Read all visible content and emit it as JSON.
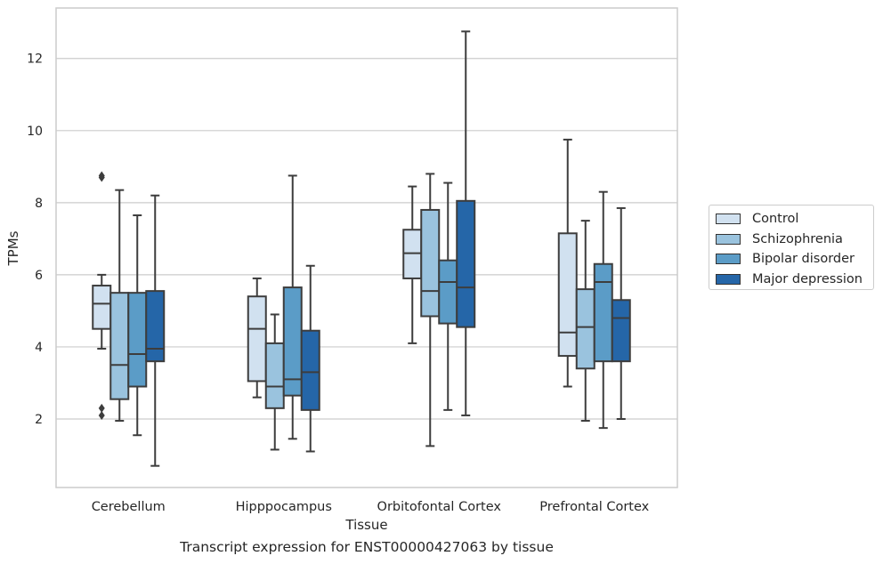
{
  "chart_data": {
    "type": "box",
    "xlabel": "Tissue",
    "ylabel": "TPMs",
    "caption": "Transcript expression for ENST00000427063 by tissue",
    "categories": [
      "Cerebellum",
      "Hipppocampus",
      "Orbitofontal Cortex",
      "Prefrontal Cortex"
    ],
    "ylim": [
      0.1,
      13.4
    ],
    "yticks": [
      2,
      4,
      6,
      8,
      10,
      12
    ],
    "grid": "horizontal",
    "legend_position": "right",
    "series": [
      {
        "name": "Control",
        "color": "#d1e1f0",
        "boxes": [
          {
            "whislo": 3.95,
            "q1": 4.5,
            "med": 5.2,
            "q3": 5.7,
            "whishi": 6.0,
            "fliers": [
              8.7,
              8.75,
              2.3,
              2.1
            ]
          },
          {
            "whislo": 2.6,
            "q1": 3.05,
            "med": 4.5,
            "q3": 5.4,
            "whishi": 5.9,
            "fliers": []
          },
          {
            "whislo": 4.1,
            "q1": 5.9,
            "med": 6.6,
            "q3": 7.25,
            "whishi": 8.45,
            "fliers": []
          },
          {
            "whislo": 2.9,
            "q1": 3.75,
            "med": 4.4,
            "q3": 7.15,
            "whishi": 9.75,
            "fliers": []
          }
        ]
      },
      {
        "name": "Schizophrenia",
        "color": "#9ac3de",
        "boxes": [
          {
            "whislo": 1.95,
            "q1": 2.55,
            "med": 3.5,
            "q3": 5.5,
            "whishi": 8.35,
            "fliers": []
          },
          {
            "whislo": 1.15,
            "q1": 2.3,
            "med": 2.9,
            "q3": 4.1,
            "whishi": 4.9,
            "fliers": []
          },
          {
            "whislo": 1.25,
            "q1": 4.85,
            "med": 5.55,
            "q3": 7.8,
            "whishi": 8.8,
            "fliers": []
          },
          {
            "whislo": 1.95,
            "q1": 3.4,
            "med": 4.55,
            "q3": 5.6,
            "whishi": 7.5,
            "fliers": []
          }
        ]
      },
      {
        "name": "Bipolar disorder",
        "color": "#5b9cc7",
        "boxes": [
          {
            "whislo": 1.55,
            "q1": 2.9,
            "med": 3.8,
            "q3": 5.5,
            "whishi": 7.65,
            "fliers": []
          },
          {
            "whislo": 1.45,
            "q1": 2.65,
            "med": 3.1,
            "q3": 5.65,
            "whishi": 8.75,
            "fliers": []
          },
          {
            "whislo": 2.25,
            "q1": 4.65,
            "med": 5.8,
            "q3": 6.4,
            "whishi": 8.55,
            "fliers": []
          },
          {
            "whislo": 1.75,
            "q1": 3.6,
            "med": 5.8,
            "q3": 6.3,
            "whishi": 8.3,
            "fliers": []
          }
        ]
      },
      {
        "name": "Major depression",
        "color": "#2566a8",
        "boxes": [
          {
            "whislo": 0.7,
            "q1": 3.6,
            "med": 3.95,
            "q3": 5.55,
            "whishi": 8.2,
            "fliers": []
          },
          {
            "whislo": 1.1,
            "q1": 2.25,
            "med": 3.3,
            "q3": 4.45,
            "whishi": 6.25,
            "fliers": []
          },
          {
            "whislo": 2.1,
            "q1": 4.55,
            "med": 5.65,
            "q3": 8.05,
            "whishi": 12.75,
            "fliers": []
          },
          {
            "whislo": 2.0,
            "q1": 3.6,
            "med": 4.8,
            "q3": 5.3,
            "whishi": 7.85,
            "fliers": []
          }
        ]
      }
    ]
  }
}
